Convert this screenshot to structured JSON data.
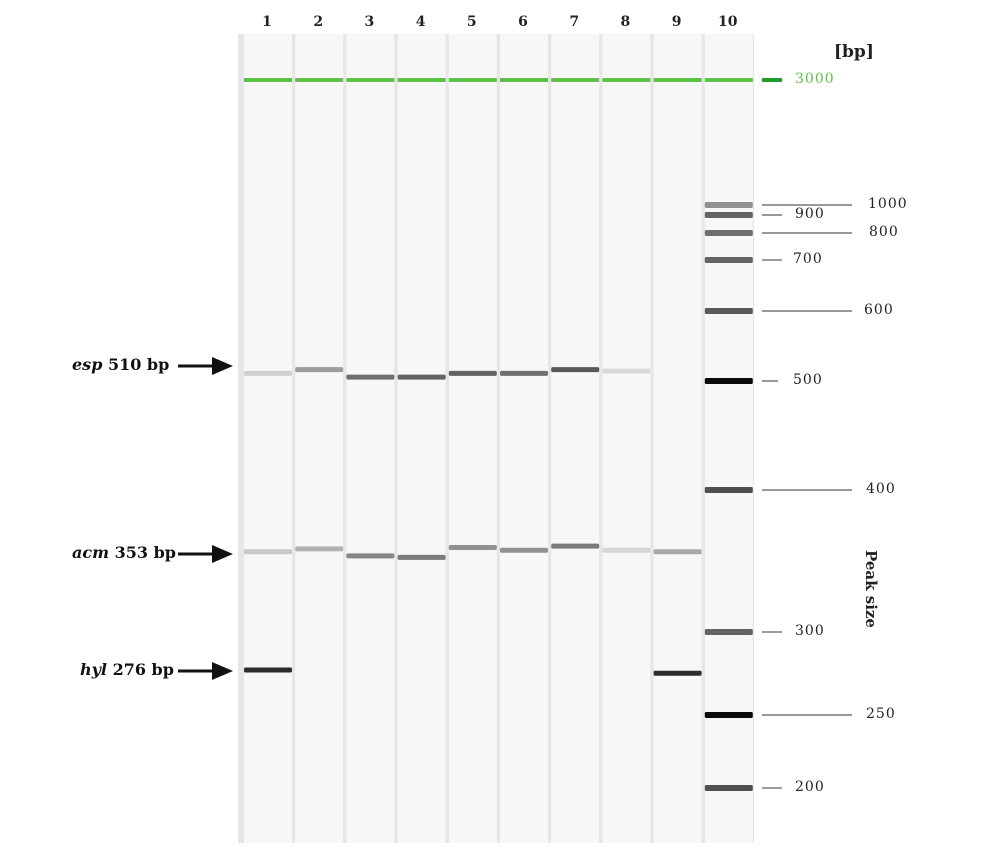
{
  "gel": {
    "lanes": [
      {
        "label": "1",
        "bands": [
          {
            "bp": 510,
            "intensity": 0.12
          },
          {
            "bp": 353,
            "intensity": 0.15
          },
          {
            "bp": 276,
            "intensity": 0.85
          }
        ]
      },
      {
        "label": "2",
        "bands": [
          {
            "bp": 515,
            "intensity": 0.35
          },
          {
            "bp": 355,
            "intensity": 0.25
          }
        ]
      },
      {
        "label": "3",
        "bands": [
          {
            "bp": 505,
            "intensity": 0.55
          },
          {
            "bp": 350,
            "intensity": 0.45
          }
        ]
      },
      {
        "label": "4",
        "bands": [
          {
            "bp": 505,
            "intensity": 0.6
          },
          {
            "bp": 349,
            "intensity": 0.5
          }
        ]
      },
      {
        "label": "5",
        "bands": [
          {
            "bp": 510,
            "intensity": 0.6
          },
          {
            "bp": 356,
            "intensity": 0.4
          }
        ]
      },
      {
        "label": "6",
        "bands": [
          {
            "bp": 510,
            "intensity": 0.55
          },
          {
            "bp": 354,
            "intensity": 0.4
          }
        ]
      },
      {
        "label": "7",
        "bands": [
          {
            "bp": 515,
            "intensity": 0.65
          },
          {
            "bp": 357,
            "intensity": 0.5
          }
        ]
      },
      {
        "label": "8",
        "bands": [
          {
            "bp": 513,
            "intensity": 0.08
          },
          {
            "bp": 354,
            "intensity": 0.1
          }
        ]
      },
      {
        "label": "9",
        "bands": [
          {
            "bp": 353,
            "intensity": 0.3
          },
          {
            "bp": 274,
            "intensity": 0.85
          }
        ]
      },
      {
        "label": "10",
        "ladder": true,
        "bands": [
          {
            "bp": 1000,
            "intensity": 0.4
          },
          {
            "bp": 900,
            "intensity": 0.6
          },
          {
            "bp": 800,
            "intensity": 0.55
          },
          {
            "bp": 700,
            "intensity": 0.6
          },
          {
            "bp": 600,
            "intensity": 0.65
          },
          {
            "bp": 500,
            "intensity": 1.0
          },
          {
            "bp": 400,
            "intensity": 0.7
          },
          {
            "bp": 300,
            "intensity": 0.6
          },
          {
            "bp": 250,
            "intensity": 1.0
          },
          {
            "bp": 200,
            "intensity": 0.7
          }
        ]
      }
    ],
    "marker_bp": 3000,
    "marker_color": "#5cc245",
    "ladder_labels": [
      "3000",
      "1000",
      "900",
      "800",
      "700",
      "600",
      "500",
      "400",
      "300",
      "250",
      "200"
    ],
    "bp_unit": "[bp]",
    "axis_label": "Peak size",
    "targets": [
      {
        "gene": "esp",
        "size": "510 bp"
      },
      {
        "gene": "acm",
        "size": "353 bp"
      },
      {
        "gene": "hyl",
        "size": "276 bp"
      }
    ]
  }
}
